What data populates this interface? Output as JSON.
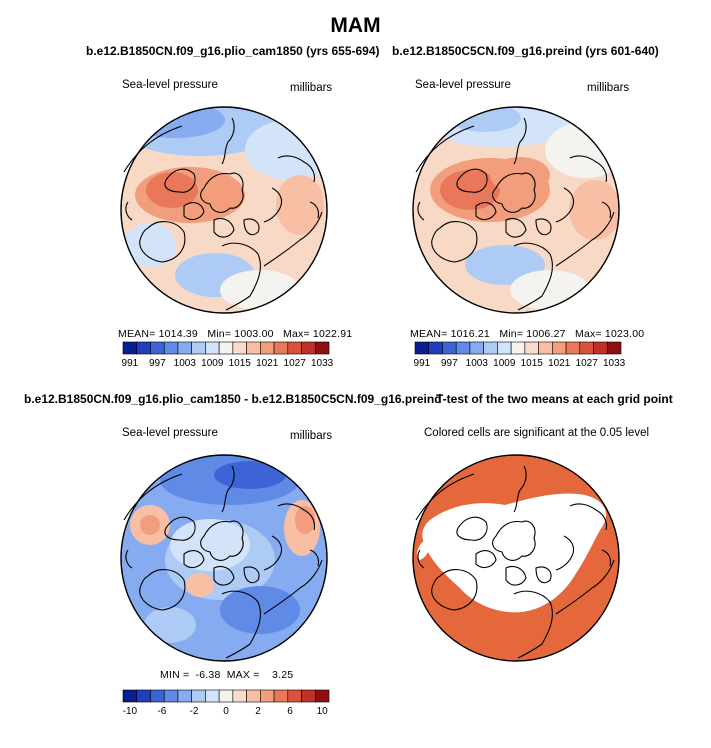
{
  "title": "MAM",
  "panels": [
    {
      "id": "plio",
      "case_title": "b.e12.B1850CN.f09_g16.plio_cam1850 (yrs 655-694)",
      "variable": "Sea-level pressure",
      "units": "millibars",
      "stats": {
        "mean": "1014.39",
        "min": "1003.00",
        "max": "1022.91"
      },
      "stats_label": {
        "mean": "MEAN=",
        "min": "Min=",
        "max": "Max="
      }
    },
    {
      "id": "preind",
      "case_title": "b.e12.B1850C5CN.f09_g16.preind (yrs 601-640)",
      "variable": "Sea-level pressure",
      "units": "millibars",
      "stats": {
        "mean": "1016.21",
        "min": "1006.27",
        "max": "1023.00"
      },
      "stats_label": {
        "mean": "MEAN=",
        "min": "Min=",
        "max": "Max="
      }
    },
    {
      "id": "diff",
      "case_title": "b.e12.B1850CN.f09_g16.plio_cam1850 - b.e12.B1850C5CN.f09_g16.preind",
      "variable": "Sea-level pressure",
      "units": "millibars",
      "stats": {
        "min": "-6.38",
        "max": "3.25"
      },
      "stats_label": {
        "min": "MIN =",
        "max": "MAX ="
      }
    },
    {
      "id": "ttest",
      "case_title": "T-test of the two means at each grid point",
      "note": "Colored cells are significant at the 0.05 level"
    }
  ],
  "chart_data": [
    {
      "type": "heatmap",
      "projection": "north-polar-stereographic",
      "title": "b.e12.B1850CN.f09_g16.plio_cam1850 (yrs 655-694)",
      "variable": "Sea-level pressure",
      "units": "millibars",
      "mean": 1014.39,
      "min": 1003.0,
      "max": 1022.91,
      "colorbar_levels": [
        991,
        994,
        997,
        1000,
        1003,
        1006,
        1009,
        1012,
        1015,
        1018,
        1021,
        1024,
        1027,
        1030,
        1033
      ],
      "colorbar_tick_labels": [
        "991",
        "997",
        "1003",
        "1009",
        "1015",
        "1021",
        "1027",
        "1033"
      ]
    },
    {
      "type": "heatmap",
      "projection": "north-polar-stereographic",
      "title": "b.e12.B1850C5CN.f09_g16.preind (yrs 601-640)",
      "variable": "Sea-level pressure",
      "units": "millibars",
      "mean": 1016.21,
      "min": 1006.27,
      "max": 1023.0,
      "colorbar_levels": [
        991,
        994,
        997,
        1000,
        1003,
        1006,
        1009,
        1012,
        1015,
        1018,
        1021,
        1024,
        1027,
        1030,
        1033
      ],
      "colorbar_tick_labels": [
        "991",
        "997",
        "1003",
        "1009",
        "1015",
        "1021",
        "1027",
        "1033"
      ]
    },
    {
      "type": "heatmap",
      "projection": "north-polar-stereographic",
      "title": "b.e12.B1850CN.f09_g16.plio_cam1850 - b.e12.B1850C5CN.f09_g16.preind",
      "variable": "Sea-level pressure",
      "units": "millibars",
      "min": -6.38,
      "max": 3.25,
      "colorbar_levels": [
        -12,
        -10,
        -8,
        -6,
        -4,
        -2,
        -1,
        0,
        1,
        2,
        4,
        6,
        8,
        10,
        12
      ],
      "colorbar_tick_labels": [
        "-10",
        "-6",
        "-2",
        "0",
        "2",
        "6",
        "10"
      ]
    },
    {
      "type": "heatmap",
      "projection": "north-polar-stereographic",
      "title": "T-test of the two means at each grid point",
      "note": "Colored cells are significant at the 0.05 level",
      "significance_level": 0.05
    }
  ],
  "colors": {
    "palette": [
      "#0a1f8f",
      "#1f3fbf",
      "#3d64d6",
      "#5f8ae6",
      "#86abf0",
      "#aecbf6",
      "#d3e4fa",
      "#f5f3ef",
      "#fbdccc",
      "#f8bfa4",
      "#f29d7c",
      "#e9785a",
      "#d9533c",
      "#c0302a",
      "#8e0f12"
    ],
    "significant": "#e4683b"
  }
}
